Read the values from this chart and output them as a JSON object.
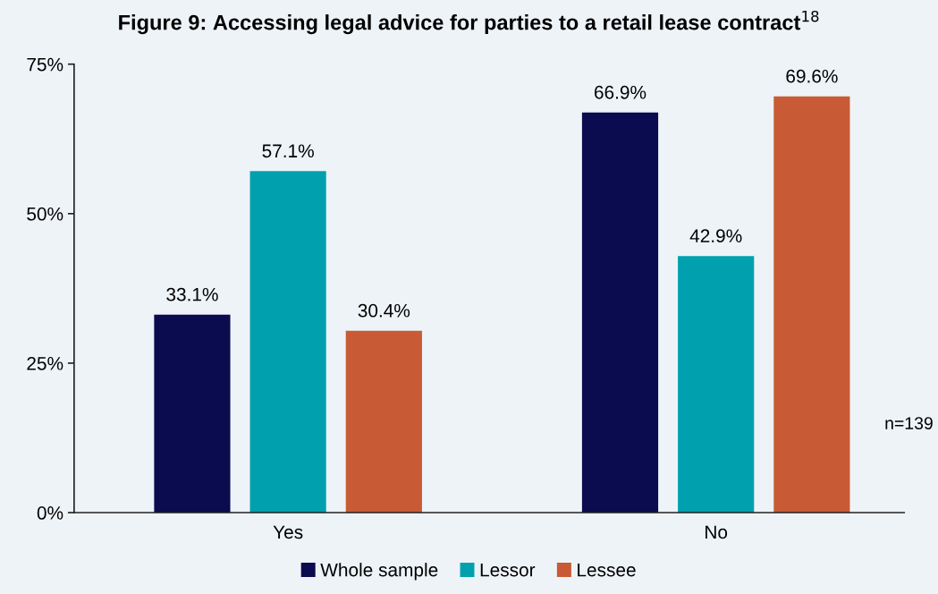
{
  "chart_data": {
    "type": "bar",
    "title": "Figure 9: Accessing legal advice for parties to a retail lease contract$^{18}$",
    "categories": [
      "Yes",
      "No"
    ],
    "series": [
      {
        "name": "Whole sample",
        "color": "#0b0b4f",
        "values": [
          33.1,
          66.9
        ],
        "value_labels": [
          "33.1%",
          "66.9%"
        ]
      },
      {
        "name": "Lessor",
        "color": "#00a0ae",
        "values": [
          57.1,
          42.9
        ],
        "value_labels": [
          "57.1%",
          "42.9%"
        ]
      },
      {
        "name": "Lessee",
        "color": "#c85b35",
        "values": [
          30.4,
          69.6
        ],
        "value_labels": [
          "30.4%",
          "69.6%"
        ]
      }
    ],
    "ylim": [
      0,
      75
    ],
    "yticks": [
      {
        "value": 0,
        "label": "0%"
      },
      {
        "value": 25,
        "label": "25%"
      },
      {
        "value": 50,
        "label": "50%"
      },
      {
        "value": 75,
        "label": "75%"
      }
    ],
    "annotations": [
      "n=139"
    ],
    "grid": false,
    "legend": "bottom"
  }
}
